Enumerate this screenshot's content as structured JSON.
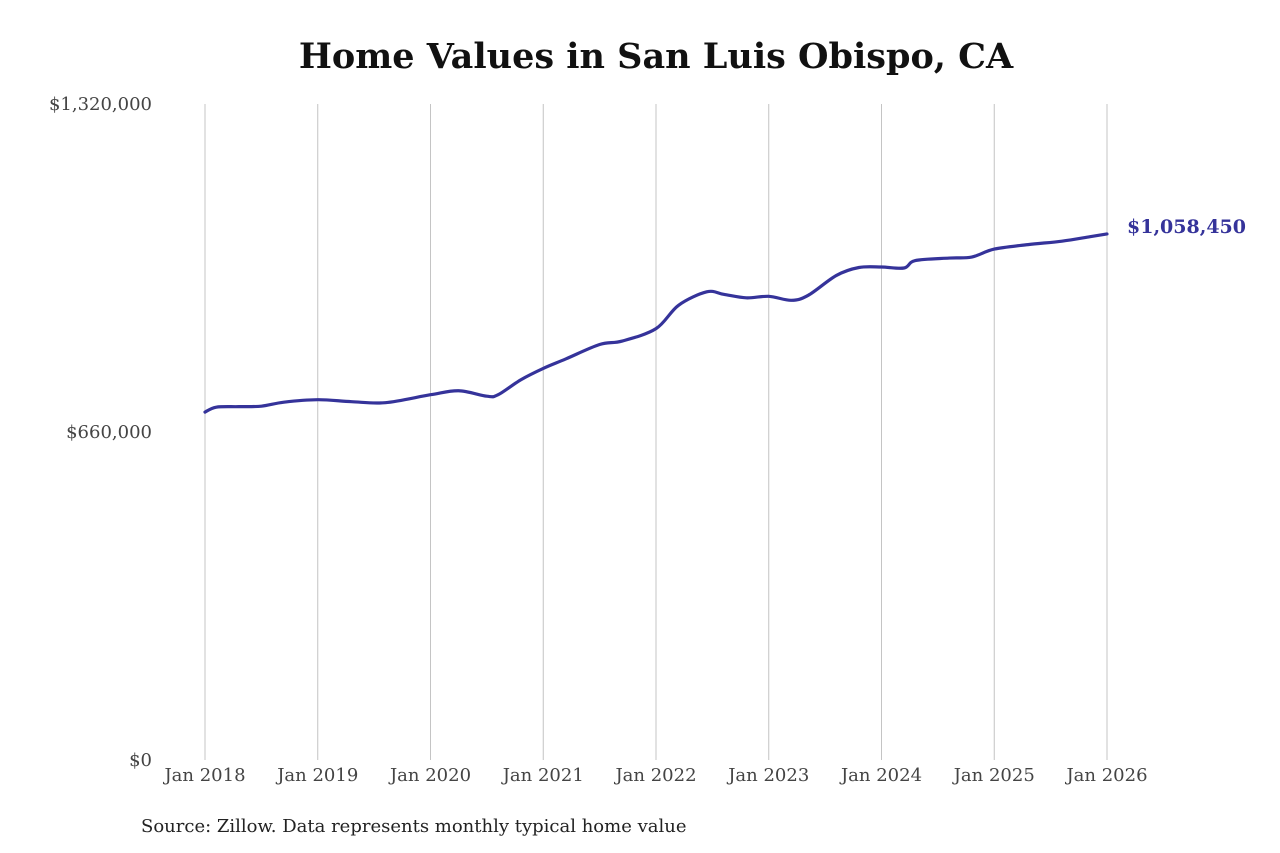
{
  "chart_data": {
    "type": "line",
    "title": "Home Values in San Luis Obispo, CA",
    "xlabel": "",
    "ylabel": "",
    "ylim": [
      0,
      1320000
    ],
    "y_ticks": [
      {
        "value": 0,
        "label": "$0"
      },
      {
        "value": 660000,
        "label": "$660,000"
      },
      {
        "value": 1320000,
        "label": "$1,320,000"
      }
    ],
    "x_ticks": [
      {
        "value": 2018,
        "label": "Jan 2018"
      },
      {
        "value": 2019,
        "label": "Jan 2019"
      },
      {
        "value": 2020,
        "label": "Jan 2020"
      },
      {
        "value": 2021,
        "label": "Jan 2021"
      },
      {
        "value": 2022,
        "label": "Jan 2022"
      },
      {
        "value": 2023,
        "label": "Jan 2023"
      },
      {
        "value": 2024,
        "label": "Jan 2024"
      },
      {
        "value": 2025,
        "label": "Jan 2025"
      },
      {
        "value": 2026,
        "label": "Jan 2026"
      }
    ],
    "xlim": [
      2018,
      2026
    ],
    "vertical_grid": true,
    "horizontal_grid": false,
    "series": [
      {
        "color": "#35339a",
        "end_label": "$1,058,450",
        "points": [
          [
            2018.0,
            700000
          ],
          [
            2018.1,
            710000
          ],
          [
            2018.3,
            711000
          ],
          [
            2018.5,
            712000
          ],
          [
            2018.7,
            720000
          ],
          [
            2019.0,
            725000
          ],
          [
            2019.3,
            721000
          ],
          [
            2019.6,
            719000
          ],
          [
            2020.0,
            735000
          ],
          [
            2020.25,
            743000
          ],
          [
            2020.5,
            732000
          ],
          [
            2020.6,
            735000
          ],
          [
            2020.8,
            765000
          ],
          [
            2021.0,
            788000
          ],
          [
            2021.2,
            807000
          ],
          [
            2021.5,
            836000
          ],
          [
            2021.7,
            843000
          ],
          [
            2022.0,
            868000
          ],
          [
            2022.2,
            915000
          ],
          [
            2022.45,
            942000
          ],
          [
            2022.6,
            937000
          ],
          [
            2022.8,
            930000
          ],
          [
            2023.0,
            933000
          ],
          [
            2023.2,
            925000
          ],
          [
            2023.35,
            935000
          ],
          [
            2023.6,
            975000
          ],
          [
            2023.8,
            991000
          ],
          [
            2024.0,
            992000
          ],
          [
            2024.2,
            990000
          ],
          [
            2024.3,
            1005000
          ],
          [
            2024.6,
            1010000
          ],
          [
            2024.8,
            1012000
          ],
          [
            2025.0,
            1028000
          ],
          [
            2025.3,
            1037000
          ],
          [
            2025.6,
            1044000
          ],
          [
            2025.85,
            1053000
          ],
          [
            2026.0,
            1058450
          ]
        ]
      }
    ]
  },
  "source": "Source: Zillow. Data represents monthly typical home value"
}
